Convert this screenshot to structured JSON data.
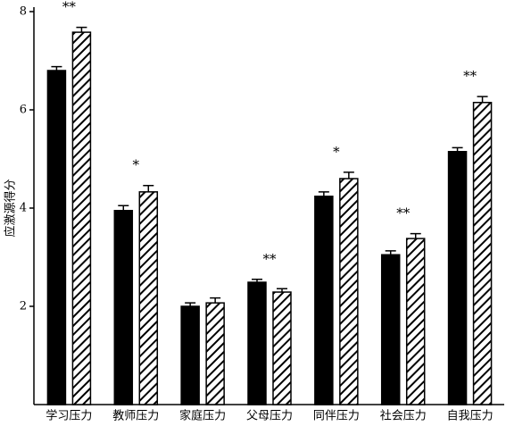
{
  "chart_data": {
    "type": "bar",
    "y_label": "应激源得分",
    "categories": [
      "学习压力",
      "教师压力",
      "家庭压力",
      "父母压力",
      "同伴压力",
      "社会压力",
      "自我压力"
    ],
    "series": [
      {
        "color": "#000000",
        "pattern": "solid",
        "values": [
          6.8,
          3.95,
          2.0,
          2.49,
          4.24,
          3.05,
          5.15
        ],
        "errors": [
          0.08,
          0.1,
          0.07,
          0.06,
          0.09,
          0.08,
          0.08
        ]
      },
      {
        "color": "#000000",
        "pattern": "hatch",
        "values": [
          7.58,
          4.33,
          2.07,
          2.29,
          4.6,
          3.38,
          6.15
        ],
        "errors": [
          0.1,
          0.13,
          0.1,
          0.07,
          0.13,
          0.1,
          0.12
        ]
      }
    ],
    "annotations": [
      "**",
      "*",
      null,
      "**",
      "*",
      "**",
      "**"
    ],
    "ylim": [
      0,
      8
    ],
    "yticks": [
      2,
      4,
      6,
      8
    ]
  }
}
